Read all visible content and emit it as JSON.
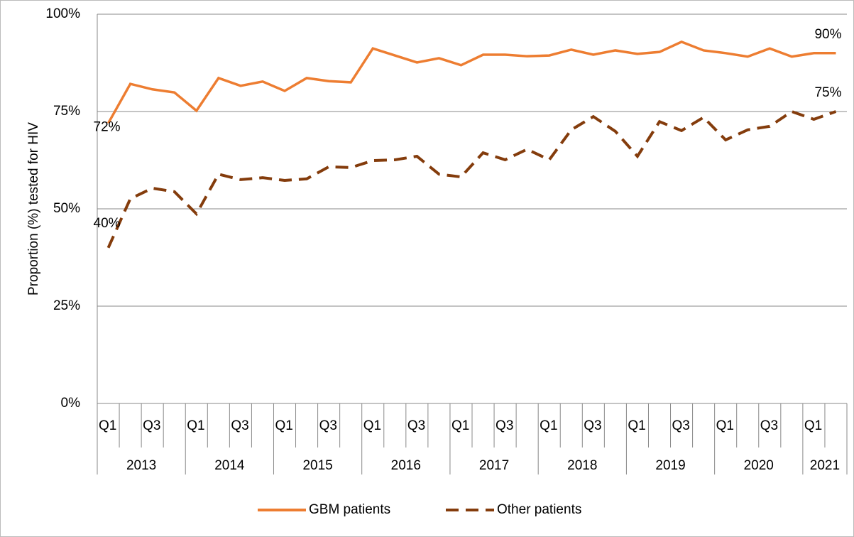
{
  "chart_data": {
    "type": "line",
    "y_label": "Proportion (%) tested for HIV",
    "categories": [
      "Q1",
      null,
      "Q3",
      null,
      "Q1",
      null,
      "Q3",
      null,
      "Q1",
      null,
      "Q3",
      null,
      "Q1",
      null,
      "Q3",
      null,
      "Q1",
      null,
      "Q3",
      null,
      "Q1",
      null,
      "Q3",
      null,
      "Q1",
      null,
      "Q3",
      null,
      "Q1",
      null,
      "Q3",
      null,
      "Q1",
      null
    ],
    "x_groups": [
      "2013",
      "2014",
      "2015",
      "2016",
      "2017",
      "2018",
      "2019",
      "2020",
      "2021"
    ],
    "series": [
      {
        "name": "GBM patients",
        "color": "#ed7d31",
        "dash": false,
        "values": [
          72,
          82.1,
          80.7,
          79.9,
          75.2,
          83.6,
          81.6,
          82.7,
          80.3,
          83.6,
          82.8,
          82.5,
          91.2,
          89.4,
          87.6,
          88.7,
          86.9,
          89.6,
          89.6,
          89.2,
          89.4,
          90.9,
          89.6,
          90.7,
          89.8,
          90.3,
          92.9,
          90.7,
          90.0,
          89.1,
          91.2,
          89.1,
          90.0,
          90
        ],
        "value_labels": [
          "72%",
          null,
          null,
          null,
          null,
          null,
          null,
          null,
          null,
          null,
          null,
          null,
          null,
          null,
          null,
          null,
          null,
          null,
          null,
          null,
          null,
          null,
          null,
          null,
          null,
          null,
          null,
          null,
          null,
          null,
          null,
          null,
          null,
          "90%"
        ]
      },
      {
        "name": "Other patients",
        "color": "#843c0c",
        "dash": true,
        "values": [
          40,
          52.6,
          55.3,
          54.4,
          48.7,
          58.9,
          57.5,
          58.0,
          57.3,
          57.7,
          60.8,
          60.6,
          62.4,
          62.6,
          63.5,
          58.9,
          58.2,
          64.4,
          62.6,
          65.3,
          62.6,
          70.3,
          73.7,
          69.9,
          63.5,
          72.4,
          70.1,
          73.5,
          67.7,
          70.3,
          71.2,
          75.0,
          73.0,
          75
        ],
        "value_labels": [
          "40%",
          null,
          null,
          null,
          null,
          null,
          null,
          null,
          null,
          null,
          null,
          null,
          null,
          null,
          null,
          null,
          null,
          null,
          null,
          null,
          null,
          null,
          null,
          null,
          null,
          null,
          null,
          null,
          null,
          null,
          null,
          null,
          null,
          "75%"
        ]
      }
    ],
    "ylim": [
      0,
      100
    ],
    "yticks": [
      {
        "value": 0,
        "label": "0%"
      },
      {
        "value": 25,
        "label": "25%"
      },
      {
        "value": 50,
        "label": "50%"
      },
      {
        "value": 75,
        "label": "75%"
      },
      {
        "value": 100,
        "label": "100%"
      }
    ],
    "grid": true,
    "legend": "bottom"
  }
}
